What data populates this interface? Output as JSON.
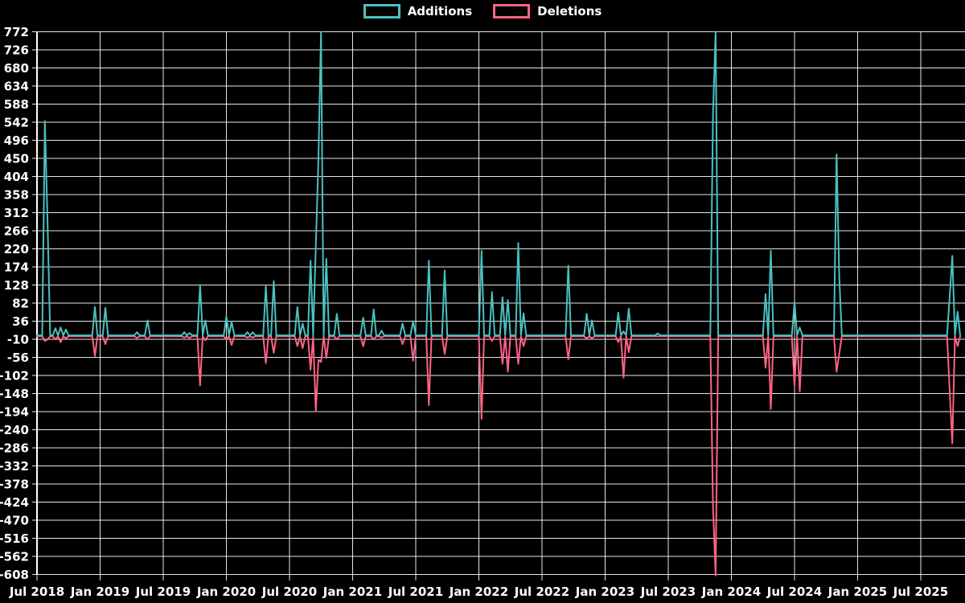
{
  "legend": {
    "additions_label": "Additions",
    "deletions_label": "Deletions"
  },
  "colors": {
    "background": "#000000",
    "grid": "#ffffff",
    "axis": "#ffffff",
    "text": "#ffffff",
    "additions": "#4bc0c0",
    "deletions": "#ff6384"
  },
  "chart_data": {
    "type": "line",
    "title": "",
    "xlabel": "",
    "ylabel": "",
    "grid": true,
    "legend_position": "top-center",
    "x_axis": {
      "tick_labels": [
        "Jul 2018",
        "Jan 2019",
        "Jul 2019",
        "Jan 2020",
        "Jul 2020",
        "Jan 2021",
        "Jul 2021",
        "Jan 2022",
        "Jul 2022",
        "Jan 2023",
        "Jul 2023",
        "Jan 2024",
        "Jul 2024",
        "Jan 2025",
        "Jul 2025"
      ],
      "tick_interval_months": 6,
      "domain_months": [
        0,
        88.2
      ]
    },
    "y_axis": {
      "min": -608,
      "max": 772,
      "step": 46,
      "tick_labels": [
        "772",
        "726",
        "680",
        "634",
        "588",
        "542",
        "496",
        "450",
        "404",
        "358",
        "312",
        "266",
        "220",
        "174",
        "128",
        "82",
        "36",
        "-10",
        "-56",
        "-102",
        "-148",
        "-194",
        "-240",
        "-286",
        "-332",
        "-378",
        "-424",
        "-470",
        "-516",
        "-562",
        "-608"
      ]
    },
    "sample_step_months": 0.25,
    "baseline_end_month": 87.7,
    "series": [
      {
        "name": "Additions",
        "color": "#4bc0c0",
        "points": [
          [
            0.7,
            545
          ],
          [
            1.0,
            290
          ],
          [
            1.8,
            18
          ],
          [
            2.3,
            20
          ],
          [
            2.7,
            15
          ],
          [
            5.6,
            72
          ],
          [
            6.5,
            70
          ],
          [
            9.5,
            8
          ],
          [
            10.6,
            38
          ],
          [
            13.9,
            8
          ],
          [
            14.5,
            6
          ],
          [
            15.5,
            128
          ],
          [
            16.0,
            38
          ],
          [
            17.9,
            48
          ],
          [
            18.6,
            35
          ],
          [
            19.9,
            8
          ],
          [
            20.5,
            8
          ],
          [
            21.7,
            125
          ],
          [
            22.5,
            138
          ],
          [
            24.7,
            72
          ],
          [
            25.2,
            30
          ],
          [
            26.0,
            190
          ],
          [
            26.4,
            225
          ],
          [
            26.8,
            450
          ],
          [
            27.1,
            772
          ],
          [
            27.5,
            195
          ],
          [
            28.4,
            55
          ],
          [
            30.9,
            45
          ],
          [
            31.9,
            66
          ],
          [
            32.8,
            12
          ],
          [
            34.8,
            30
          ],
          [
            35.7,
            36
          ],
          [
            37.3,
            190
          ],
          [
            38.7,
            165
          ],
          [
            42.2,
            215
          ],
          [
            43.2,
            110
          ],
          [
            44.3,
            97
          ],
          [
            44.8,
            90
          ],
          [
            45.7,
            235
          ],
          [
            46.3,
            56
          ],
          [
            50.6,
            177
          ],
          [
            52.3,
            55
          ],
          [
            52.8,
            38
          ],
          [
            55.3,
            58
          ],
          [
            55.8,
            10
          ],
          [
            56.3,
            68
          ],
          [
            59.0,
            5
          ],
          [
            64.2,
            560
          ],
          [
            64.5,
            772
          ],
          [
            69.3,
            105
          ],
          [
            69.7,
            215
          ],
          [
            72.1,
            85
          ],
          [
            72.4,
            20
          ],
          [
            75.9,
            460
          ],
          [
            76.2,
            150
          ],
          [
            86.7,
            100
          ],
          [
            87.1,
            202
          ],
          [
            87.4,
            60
          ]
        ]
      },
      {
        "name": "Deletions",
        "color": "#ff6384",
        "points": [
          [
            0.7,
            -12
          ],
          [
            1.0,
            -8
          ],
          [
            1.8,
            -8
          ],
          [
            2.3,
            -15
          ],
          [
            2.7,
            -5
          ],
          [
            5.6,
            -50
          ],
          [
            6.5,
            -20
          ],
          [
            9.5,
            -4
          ],
          [
            10.6,
            -8
          ],
          [
            13.9,
            -3
          ],
          [
            14.5,
            -4
          ],
          [
            15.5,
            -125
          ],
          [
            16.0,
            -10
          ],
          [
            17.9,
            -8
          ],
          [
            18.6,
            -22
          ],
          [
            19.9,
            -3
          ],
          [
            20.5,
            -3
          ],
          [
            21.7,
            -68
          ],
          [
            22.5,
            -42
          ],
          [
            24.7,
            -25
          ],
          [
            25.2,
            -30
          ],
          [
            26.0,
            -85
          ],
          [
            26.4,
            -190
          ],
          [
            26.8,
            -60
          ],
          [
            27.1,
            -65
          ],
          [
            27.5,
            -55
          ],
          [
            28.4,
            -8
          ],
          [
            30.9,
            -25
          ],
          [
            31.9,
            -8
          ],
          [
            32.8,
            -3
          ],
          [
            34.8,
            -20
          ],
          [
            35.7,
            -62
          ],
          [
            37.3,
            -175
          ],
          [
            38.7,
            -45
          ],
          [
            42.2,
            -210
          ],
          [
            43.2,
            -12
          ],
          [
            44.3,
            -70
          ],
          [
            44.8,
            -90
          ],
          [
            45.7,
            -70
          ],
          [
            46.3,
            -25
          ],
          [
            50.6,
            -58
          ],
          [
            52.3,
            -5
          ],
          [
            52.8,
            -5
          ],
          [
            55.3,
            -15
          ],
          [
            55.8,
            -105
          ],
          [
            56.3,
            -40
          ],
          [
            64.2,
            -430
          ],
          [
            64.5,
            -608
          ],
          [
            69.3,
            -80
          ],
          [
            69.7,
            -185
          ],
          [
            72.1,
            -125
          ],
          [
            72.4,
            -140
          ],
          [
            75.9,
            -90
          ],
          [
            76.2,
            -45
          ],
          [
            86.7,
            -140
          ],
          [
            87.1,
            -272
          ],
          [
            87.4,
            -25
          ]
        ]
      }
    ]
  }
}
